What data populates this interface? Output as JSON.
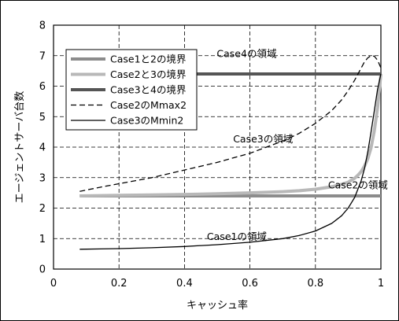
{
  "chart_data": {
    "type": "line",
    "xlabel": "キャッシュ率",
    "ylabel": "エージェントサーバ台数",
    "xlim": [
      0,
      1
    ],
    "ylim": [
      0,
      8
    ],
    "x_ticks": [
      "0",
      "0.2",
      "0.4",
      "0.6",
      "0.8",
      "1"
    ],
    "y_ticks": [
      "0",
      "1",
      "2",
      "3",
      "4",
      "5",
      "6",
      "7",
      "8"
    ],
    "grid": true,
    "legend_position": "top-left",
    "series": [
      {
        "name": "Case1と2の境界",
        "color": "#8c8c8c",
        "style": "solid-thick",
        "x": [
          0.08,
          0.2,
          0.4,
          0.6,
          0.8,
          1.0
        ],
        "y": [
          2.4,
          2.4,
          2.4,
          2.4,
          2.4,
          2.4
        ]
      },
      {
        "name": "Case2と3の境界",
        "color": "#b8b8b8",
        "style": "solid-thick",
        "x": [
          0.08,
          0.2,
          0.3,
          0.4,
          0.5,
          0.6,
          0.7,
          0.75,
          0.8,
          0.85,
          0.88,
          0.9,
          0.92,
          0.93,
          0.94,
          0.95,
          0.96,
          0.97,
          0.98,
          0.99,
          1.0
        ],
        "y": [
          2.4,
          2.42,
          2.43,
          2.45,
          2.47,
          2.5,
          2.54,
          2.57,
          2.62,
          2.7,
          2.78,
          2.85,
          2.98,
          3.08,
          3.2,
          3.38,
          3.62,
          3.98,
          4.55,
          5.3,
          6.4
        ]
      },
      {
        "name": "Case3と4の境界",
        "color": "#555555",
        "style": "solid-thick",
        "x": [
          0.08,
          0.2,
          0.4,
          0.6,
          0.8,
          1.0
        ],
        "y": [
          6.4,
          6.4,
          6.4,
          6.4,
          6.4,
          6.4
        ]
      },
      {
        "name": "Case2のMmax2",
        "color": "#000000",
        "style": "dashed",
        "x": [
          0.08,
          0.15,
          0.2,
          0.3,
          0.4,
          0.5,
          0.6,
          0.7,
          0.75,
          0.8,
          0.85,
          0.88,
          0.9,
          0.92,
          0.94,
          0.95,
          0.96,
          0.97,
          0.98,
          0.99,
          1.0
        ],
        "y": [
          2.55,
          2.7,
          2.8,
          3.0,
          3.25,
          3.5,
          3.8,
          4.2,
          4.45,
          4.78,
          5.2,
          5.55,
          5.85,
          6.2,
          6.6,
          6.8,
          6.93,
          7.0,
          6.98,
          6.85,
          6.6
        ]
      },
      {
        "name": "Case3のMmin2",
        "color": "#000000",
        "style": "solid-thin",
        "x": [
          0.08,
          0.2,
          0.3,
          0.4,
          0.5,
          0.6,
          0.7,
          0.75,
          0.8,
          0.85,
          0.88,
          0.9,
          0.92,
          0.94,
          0.95,
          0.96,
          0.97,
          0.98,
          0.99,
          1.0
        ],
        "y": [
          0.65,
          0.67,
          0.7,
          0.74,
          0.8,
          0.88,
          1.0,
          1.1,
          1.25,
          1.5,
          1.75,
          2.0,
          2.35,
          2.9,
          3.3,
          3.85,
          4.5,
          5.2,
          5.9,
          6.4
        ]
      }
    ],
    "annotations": [
      {
        "text": "Case4の領域",
        "x": 0.59,
        "y": 6.95
      },
      {
        "text": "Case3の領域",
        "x": 0.64,
        "y": 4.15
      },
      {
        "text": "Case2の領域",
        "x": 0.93,
        "y": 2.65
      },
      {
        "text": "Case1の領域",
        "x": 0.56,
        "y": 0.95
      }
    ]
  }
}
